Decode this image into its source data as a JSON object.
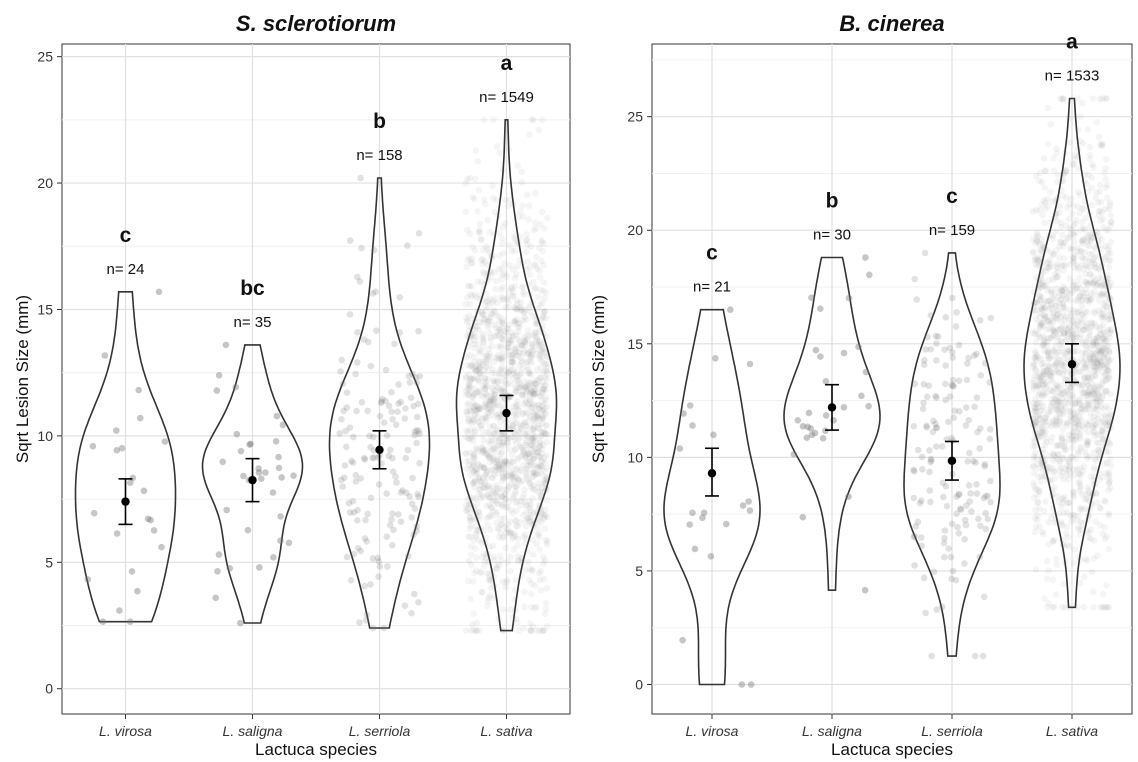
{
  "chart_data": [
    {
      "type": "violin",
      "title": "S. sclerotiorum",
      "xlabel": "Lactuca species",
      "ylabel": "Sqrt Lesion Size (mm)",
      "ylim": [
        -1.0,
        25.5
      ],
      "yticks": [
        0,
        5,
        10,
        15,
        20,
        25
      ],
      "grid": true,
      "categories": [
        "L. virosa",
        "L. saligna",
        "L. serriola",
        "L. sativa"
      ],
      "groups": [
        {
          "category": "L. virosa",
          "letter": "c",
          "n_label": "n= 24",
          "n": 24,
          "mean": 7.4,
          "ci_low": 6.5,
          "ci_high": 8.3,
          "min": 2.65,
          "max": 15.7
        },
        {
          "category": "L. saligna",
          "letter": "bc",
          "n_label": "n= 35",
          "n": 35,
          "mean": 8.25,
          "ci_low": 7.4,
          "ci_high": 9.1,
          "min": 2.6,
          "max": 13.6
        },
        {
          "category": "L. serriola",
          "letter": "b",
          "n_label": "n= 158",
          "n": 158,
          "mean": 9.45,
          "ci_low": 8.7,
          "ci_high": 10.2,
          "min": 2.4,
          "max": 20.2
        },
        {
          "category": "L. sativa",
          "letter": "a",
          "n_label": "n= 1549",
          "n": 1549,
          "mean": 10.9,
          "ci_low": 10.2,
          "ci_high": 11.6,
          "min": 2.3,
          "max": 22.5
        }
      ],
      "point_color": "#777777",
      "violin_color": "#333333"
    },
    {
      "type": "violin",
      "title": "B. cinerea",
      "xlabel": "Lactuca species",
      "ylabel": "Sqrt Lesion Size (mm)",
      "ylim": [
        -1.3,
        28.2
      ],
      "yticks": [
        0,
        5,
        10,
        15,
        20,
        25
      ],
      "grid": true,
      "categories": [
        "L. virosa",
        "L. saligna",
        "L. serriola",
        "L. sativa"
      ],
      "groups": [
        {
          "category": "L. virosa",
          "letter": "c",
          "n_label": "n= 21",
          "n": 21,
          "mean": 9.3,
          "ci_low": 8.3,
          "ci_high": 10.4,
          "min": 0.0,
          "max": 16.5
        },
        {
          "category": "L. saligna",
          "letter": "b",
          "n_label": "n= 30",
          "n": 30,
          "mean": 12.2,
          "ci_low": 11.2,
          "ci_high": 13.2,
          "min": 4.15,
          "max": 18.8
        },
        {
          "category": "L. serriola",
          "letter": "c",
          "n_label": "n= 159",
          "n": 159,
          "mean": 9.85,
          "ci_low": 9.0,
          "ci_high": 10.7,
          "min": 1.25,
          "max": 19.0
        },
        {
          "category": "L. sativa",
          "letter": "a",
          "n_label": "n= 1533",
          "n": 1533,
          "mean": 14.1,
          "ci_low": 13.3,
          "ci_high": 15.0,
          "min": 3.4,
          "max": 25.8
        }
      ],
      "point_color": "#777777",
      "violin_color": "#333333"
    }
  ]
}
